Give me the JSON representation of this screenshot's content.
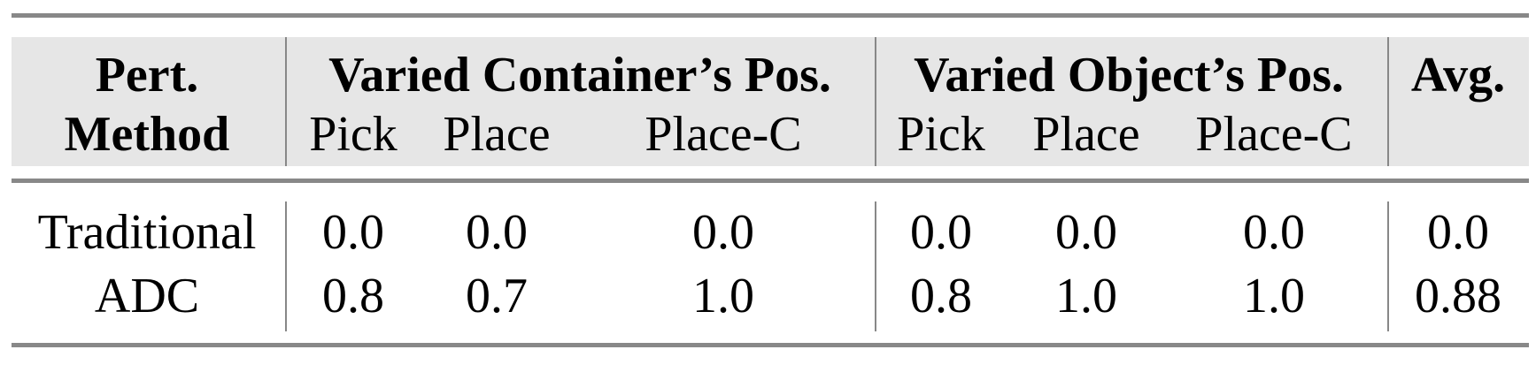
{
  "table": {
    "header": {
      "method_line1": "Pert.",
      "method_line2": "Method",
      "group1": "Varied Container’s Pos.",
      "group2": "Varied Object’s Pos.",
      "avg": "Avg.",
      "subcolumns": [
        "Pick",
        "Place",
        "Place-C",
        "Pick",
        "Place",
        "Place-C"
      ]
    },
    "rows": [
      {
        "method": "Traditional",
        "values": [
          "0.0",
          "0.0",
          "0.0",
          "0.0",
          "0.0",
          "0.0"
        ],
        "avg": "0.0"
      },
      {
        "method": "ADC",
        "values": [
          "0.8",
          "0.7",
          "1.0",
          "0.8",
          "1.0",
          "1.0"
        ],
        "avg": "0.88"
      }
    ]
  },
  "colors": {
    "header_bg": "#e6e6e6",
    "rule": "#888888"
  }
}
